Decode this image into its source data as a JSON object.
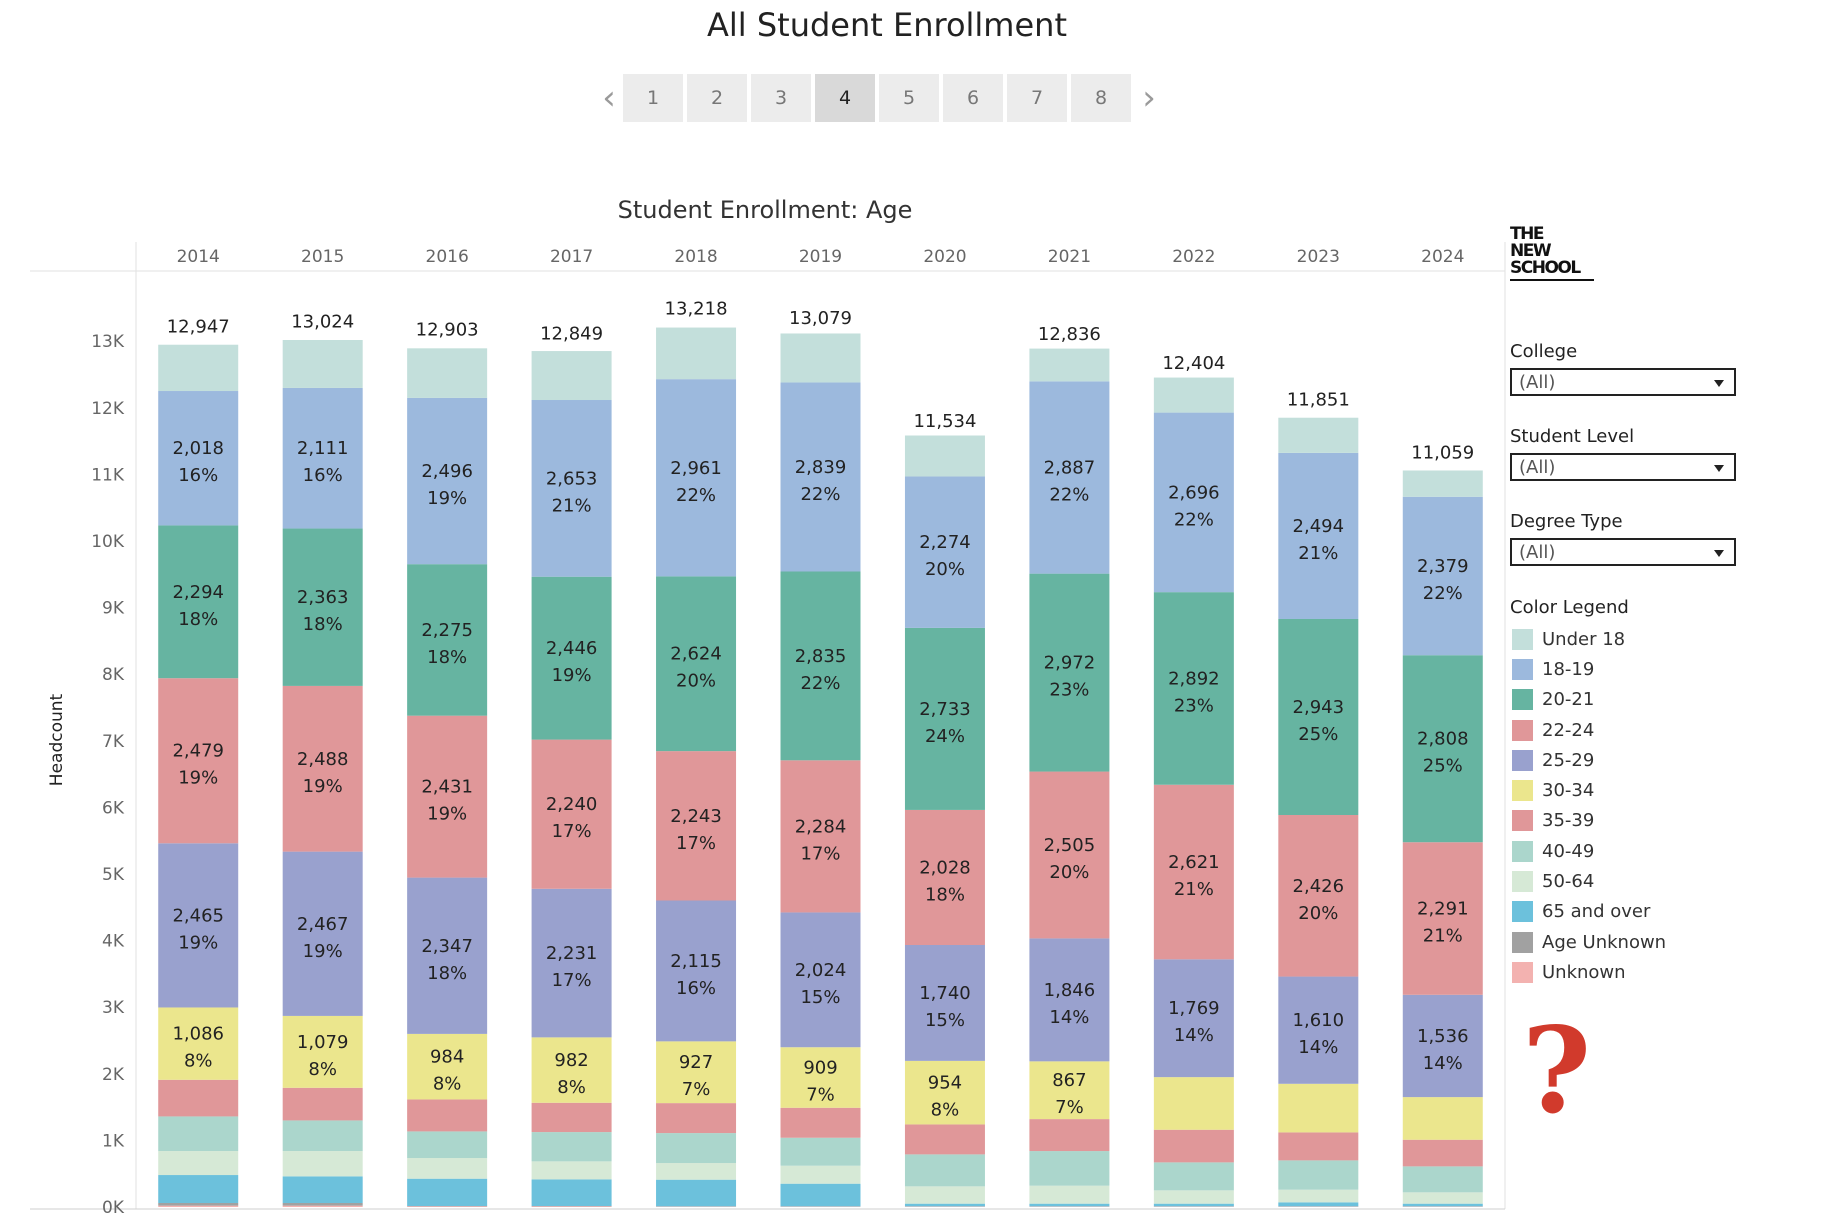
{
  "page": {
    "title": "All Student Enrollment",
    "pager": {
      "pages": [
        "1",
        "2",
        "3",
        "4",
        "5",
        "6",
        "7",
        "8"
      ],
      "active": "4",
      "prev_icon": "chevron-left-icon",
      "next_icon": "chevron-right-icon"
    }
  },
  "sidebar": {
    "logo": {
      "lines": [
        "THE",
        "NEW",
        "SCHOOL"
      ]
    },
    "filters": [
      {
        "label": "College",
        "value": "(All)"
      },
      {
        "label": "Student Level",
        "value": "(All)"
      },
      {
        "label": "Degree Type",
        "value": "(All)"
      }
    ],
    "legend": {
      "title": "Color Legend",
      "items": [
        {
          "label": "Under 18",
          "color": "#c3dfdb"
        },
        {
          "label": "18-19",
          "color": "#9cb9dd"
        },
        {
          "label": "20-21",
          "color": "#66b4a1"
        },
        {
          "label": "22-24",
          "color": "#e09799"
        },
        {
          "label": "25-29",
          "color": "#99a1ce"
        },
        {
          "label": "30-34",
          "color": "#ebe68d"
        },
        {
          "label": "35-39",
          "color": "#e09799"
        },
        {
          "label": "40-49",
          "color": "#abd6cc"
        },
        {
          "label": "50-64",
          "color": "#d6e9d6"
        },
        {
          "label": "65 and over",
          "color": "#6cc1dc"
        },
        {
          "label": "Age Unknown",
          "color": "#a1a1a1"
        },
        {
          "label": "Unknown",
          "color": "#f3b2b0"
        }
      ]
    },
    "help_icon": "question-mark-icon"
  },
  "chart_data": {
    "type": "bar",
    "stacked": true,
    "title": "Student Enrollment: Age",
    "xlabel": "",
    "ylabel": "Headcount",
    "ylim": [
      0,
      13700
    ],
    "yticks": [
      0,
      1000,
      2000,
      3000,
      4000,
      5000,
      6000,
      7000,
      8000,
      9000,
      10000,
      11000,
      12000,
      13000
    ],
    "ytick_labels": [
      "0K",
      "1K",
      "2K",
      "3K",
      "4K",
      "5K",
      "6K",
      "7K",
      "8K",
      "9K",
      "10K",
      "11K",
      "12K",
      "13K"
    ],
    "categories": [
      "2014",
      "2015",
      "2016",
      "2017",
      "2018",
      "2019",
      "2020",
      "2021",
      "2022",
      "2023",
      "2024"
    ],
    "totals": [
      12947,
      13024,
      12903,
      12849,
      13218,
      13079,
      11534,
      12836,
      12404,
      11851,
      11059
    ],
    "total_labels": [
      "12,947",
      "13,024",
      "12,903",
      "12,849",
      "13,218",
      "13,079",
      "11,534",
      "12,836",
      "12,404",
      "11,851",
      "11,059"
    ],
    "series": [
      {
        "name": "Unknown",
        "values": [
          20,
          20,
          10,
          10,
          5,
          5,
          5,
          5,
          5,
          5,
          5
        ]
      },
      {
        "name": "Age Unknown",
        "values": [
          40,
          40,
          5,
          5,
          5,
          5,
          5,
          5,
          5,
          5,
          5
        ]
      },
      {
        "name": "65 and over",
        "values": [
          420,
          400,
          410,
          400,
          400,
          340,
          40,
          40,
          40,
          60,
          40
        ]
      },
      {
        "name": "50-64",
        "values": [
          360,
          380,
          310,
          270,
          250,
          270,
          260,
          270,
          200,
          190,
          170
        ]
      },
      {
        "name": "40-49",
        "values": [
          520,
          460,
          400,
          440,
          450,
          420,
          480,
          520,
          420,
          440,
          390
        ]
      },
      {
        "name": "35-39",
        "values": [
          550,
          490,
          480,
          440,
          450,
          450,
          450,
          480,
          490,
          420,
          400
        ]
      },
      {
        "name": "30-34",
        "values": [
          1086,
          1079,
          984,
          982,
          927,
          909,
          954,
          867,
          790,
          730,
          640
        ],
        "labels": [
          "1,086",
          "1,079",
          "984",
          "982",
          "927",
          "909",
          "954",
          "867",
          "",
          "",
          ""
        ],
        "pct": [
          "8%",
          "8%",
          "8%",
          "8%",
          "7%",
          "7%",
          "8%",
          "7%",
          "",
          "",
          ""
        ]
      },
      {
        "name": "25-29",
        "values": [
          2465,
          2467,
          2347,
          2231,
          2115,
          2024,
          1740,
          1846,
          1769,
          1610,
          1536
        ],
        "labels": [
          "2,465",
          "2,467",
          "2,347",
          "2,231",
          "2,115",
          "2,024",
          "1,740",
          "1,846",
          "1,769",
          "1,610",
          "1,536"
        ],
        "pct": [
          "19%",
          "19%",
          "18%",
          "17%",
          "16%",
          "15%",
          "15%",
          "14%",
          "14%",
          "14%",
          "14%"
        ]
      },
      {
        "name": "22-24",
        "values": [
          2479,
          2488,
          2431,
          2240,
          2243,
          2284,
          2028,
          2505,
          2621,
          2426,
          2291
        ],
        "labels": [
          "2,479",
          "2,488",
          "2,431",
          "2,240",
          "2,243",
          "2,284",
          "2,028",
          "2,505",
          "2,621",
          "2,426",
          "2,291"
        ],
        "pct": [
          "19%",
          "19%",
          "19%",
          "17%",
          "17%",
          "17%",
          "18%",
          "20%",
          "21%",
          "20%",
          "21%"
        ]
      },
      {
        "name": "20-21",
        "values": [
          2294,
          2363,
          2275,
          2446,
          2624,
          2835,
          2733,
          2972,
          2892,
          2943,
          2808
        ],
        "labels": [
          "2,294",
          "2,363",
          "2,275",
          "2,446",
          "2,624",
          "2,835",
          "2,733",
          "2,972",
          "2,892",
          "2,943",
          "2,808"
        ],
        "pct": [
          "18%",
          "18%",
          "18%",
          "19%",
          "20%",
          "22%",
          "24%",
          "23%",
          "23%",
          "25%",
          "25%"
        ]
      },
      {
        "name": "18-19",
        "values": [
          2018,
          2111,
          2496,
          2653,
          2961,
          2839,
          2274,
          2887,
          2696,
          2494,
          2379
        ],
        "labels": [
          "2,018",
          "2,111",
          "2,496",
          "2,653",
          "2,961",
          "2,839",
          "2,274",
          "2,887",
          "2,696",
          "2,494",
          "2,379"
        ],
        "pct": [
          "16%",
          "16%",
          "19%",
          "21%",
          "22%",
          "22%",
          "20%",
          "22%",
          "22%",
          "21%",
          "22%"
        ]
      },
      {
        "name": "Under 18",
        "values": [
          695,
          720,
          745,
          735,
          775,
          735,
          615,
          492,
          526,
          528,
          395
        ]
      }
    ]
  }
}
